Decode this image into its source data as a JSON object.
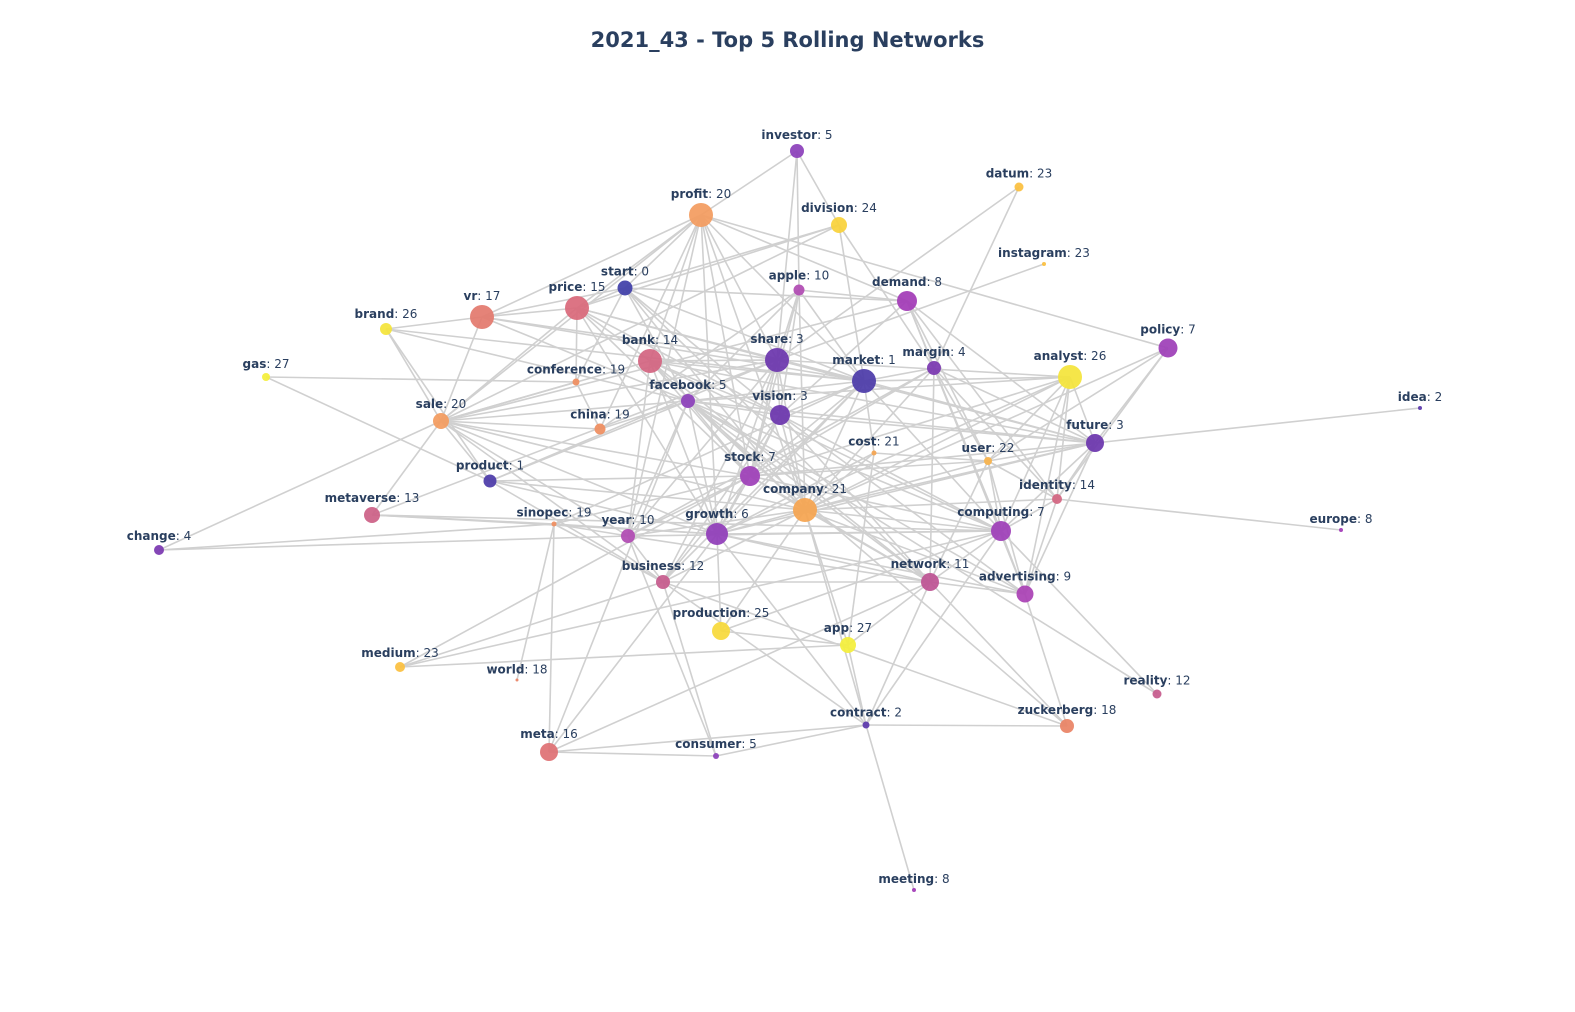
{
  "title": "2021_43 - Top 5 Rolling Networks",
  "nodes": [
    {
      "id": "investor",
      "count": "5",
      "color": "#8b3fba"
    },
    {
      "id": "datum",
      "count": "23",
      "color": "#fbbf3e"
    },
    {
      "id": "profit",
      "count": "20",
      "color": "#f39b5e"
    },
    {
      "id": "division",
      "count": "24",
      "color": "#f9d13a"
    },
    {
      "id": "instagram",
      "count": "23",
      "color": "#fbbf3e"
    },
    {
      "id": "start",
      "count": "0",
      "color": "#3f3ea8"
    },
    {
      "id": "apple",
      "count": "10",
      "color": "#b04ab2"
    },
    {
      "id": "demand",
      "count": "8",
      "color": "#a23ab6"
    },
    {
      "id": "vr",
      "count": "17",
      "color": "#e3786c"
    },
    {
      "id": "price",
      "count": "15",
      "color": "#d9687a"
    },
    {
      "id": "brand",
      "count": "26",
      "color": "#f4e43a"
    },
    {
      "id": "policy",
      "count": "7",
      "color": "#9d3eb7"
    },
    {
      "id": "share",
      "count": "3",
      "color": "#6a34ad"
    },
    {
      "id": "bank",
      "count": "14",
      "color": "#d26480"
    },
    {
      "id": "market",
      "count": "1",
      "color": "#4b3aa8"
    },
    {
      "id": "margin",
      "count": "4",
      "color": "#7a36b0"
    },
    {
      "id": "analyst",
      "count": "26",
      "color": "#f4e43a"
    },
    {
      "id": "gas",
      "count": "27",
      "color": "#f4ef3a"
    },
    {
      "id": "conference",
      "count": "19",
      "color": "#ef8d5e"
    },
    {
      "id": "facebook",
      "count": "5",
      "color": "#8b3fba"
    },
    {
      "id": "idea",
      "count": "2",
      "color": "#5a36ab"
    },
    {
      "id": "vision",
      "count": "3",
      "color": "#6a34ad"
    },
    {
      "id": "sale",
      "count": "20",
      "color": "#f39b5e"
    },
    {
      "id": "china",
      "count": "19",
      "color": "#ef8d5e"
    },
    {
      "id": "future",
      "count": "3",
      "color": "#6a34ad"
    },
    {
      "id": "cost",
      "count": "21",
      "color": "#f5a44f"
    },
    {
      "id": "user",
      "count": "22",
      "color": "#f7b24a"
    },
    {
      "id": "product",
      "count": "1",
      "color": "#4b3aa8"
    },
    {
      "id": "stock",
      "count": "7",
      "color": "#9d3eb7"
    },
    {
      "id": "identity",
      "count": "14",
      "color": "#d26480"
    },
    {
      "id": "metaverse",
      "count": "13",
      "color": "#cc5f86"
    },
    {
      "id": "company",
      "count": "21",
      "color": "#f5a44f"
    },
    {
      "id": "europe",
      "count": "8",
      "color": "#a23ab6"
    },
    {
      "id": "sinopec",
      "count": "19",
      "color": "#ef8d5e"
    },
    {
      "id": "year",
      "count": "10",
      "color": "#b04ab2"
    },
    {
      "id": "growth",
      "count": "6",
      "color": "#8f3cb8"
    },
    {
      "id": "computing",
      "count": "7",
      "color": "#9d3eb7"
    },
    {
      "id": "change",
      "count": "4",
      "color": "#7a36b0"
    },
    {
      "id": "business",
      "count": "12",
      "color": "#c55a8c"
    },
    {
      "id": "network",
      "count": "11",
      "color": "#bd5292"
    },
    {
      "id": "advertising",
      "count": "9",
      "color": "#a940b4"
    },
    {
      "id": "production",
      "count": "25",
      "color": "#f7d93a"
    },
    {
      "id": "app",
      "count": "27",
      "color": "#f4ef3a"
    },
    {
      "id": "medium",
      "count": "23",
      "color": "#fbbf3e"
    },
    {
      "id": "world",
      "count": "18",
      "color": "#e98264"
    },
    {
      "id": "reality",
      "count": "12",
      "color": "#c55a8c"
    },
    {
      "id": "contract",
      "count": "2",
      "color": "#5a36ab"
    },
    {
      "id": "zuckerberg",
      "count": "18",
      "color": "#e98264"
    },
    {
      "id": "meta",
      "count": "16",
      "color": "#de7073"
    },
    {
      "id": "consumer",
      "count": "5",
      "color": "#8b3fba"
    },
    {
      "id": "meeting",
      "count": "8",
      "color": "#a23ab6"
    }
  ],
  "edges": [
    [
      "investor",
      "profit"
    ],
    [
      "investor",
      "apple"
    ],
    [
      "investor",
      "division"
    ],
    [
      "investor",
      "share"
    ],
    [
      "profit",
      "start"
    ],
    [
      "profit",
      "price"
    ],
    [
      "profit",
      "vr"
    ],
    [
      "profit",
      "bank"
    ],
    [
      "profit",
      "demand"
    ],
    [
      "profit",
      "share"
    ],
    [
      "profit",
      "sale"
    ],
    [
      "profit",
      "china"
    ],
    [
      "profit",
      "year"
    ],
    [
      "profit",
      "growth"
    ],
    [
      "profit",
      "stock"
    ],
    [
      "profit",
      "company"
    ],
    [
      "profit",
      "market"
    ],
    [
      "profit",
      "policy"
    ],
    [
      "datum",
      "share"
    ],
    [
      "datum",
      "margin"
    ],
    [
      "division",
      "start"
    ],
    [
      "division",
      "price"
    ],
    [
      "division",
      "market"
    ],
    [
      "division",
      "margin"
    ],
    [
      "division",
      "sale"
    ],
    [
      "instagram",
      "share"
    ],
    [
      "start",
      "vr"
    ],
    [
      "start",
      "price"
    ],
    [
      "start",
      "market"
    ],
    [
      "start",
      "demand"
    ],
    [
      "start",
      "vision"
    ],
    [
      "start",
      "conference"
    ],
    [
      "start",
      "facebook"
    ],
    [
      "start",
      "company"
    ],
    [
      "start",
      "network"
    ],
    [
      "apple",
      "market"
    ],
    [
      "apple",
      "share"
    ],
    [
      "apple",
      "vision"
    ],
    [
      "apple",
      "demand"
    ],
    [
      "apple",
      "facebook"
    ],
    [
      "apple",
      "china"
    ],
    [
      "apple",
      "company"
    ],
    [
      "apple",
      "stock"
    ],
    [
      "demand",
      "margin"
    ],
    [
      "demand",
      "user"
    ],
    [
      "demand",
      "future"
    ],
    [
      "demand",
      "sale"
    ],
    [
      "demand",
      "vision"
    ],
    [
      "demand",
      "identity"
    ],
    [
      "demand",
      "computing"
    ],
    [
      "demand",
      "advertising"
    ],
    [
      "vr",
      "brand"
    ],
    [
      "vr",
      "price"
    ],
    [
      "vr",
      "share"
    ],
    [
      "vr",
      "market"
    ],
    [
      "vr",
      "facebook"
    ],
    [
      "vr",
      "sale"
    ],
    [
      "price",
      "bank"
    ],
    [
      "price",
      "conference"
    ],
    [
      "price",
      "market"
    ],
    [
      "price",
      "vision"
    ],
    [
      "price",
      "share"
    ],
    [
      "price",
      "stock"
    ],
    [
      "price",
      "sale"
    ],
    [
      "price",
      "growth"
    ],
    [
      "brand",
      "sale"
    ],
    [
      "brand",
      "product"
    ],
    [
      "brand",
      "facebook"
    ],
    [
      "brand",
      "market"
    ],
    [
      "gas",
      "conference"
    ],
    [
      "gas",
      "product"
    ],
    [
      "bank",
      "share"
    ],
    [
      "bank",
      "market"
    ],
    [
      "bank",
      "stock"
    ],
    [
      "bank",
      "vision"
    ],
    [
      "bank",
      "future"
    ],
    [
      "bank",
      "computing"
    ],
    [
      "bank",
      "network"
    ],
    [
      "bank",
      "growth"
    ],
    [
      "bank",
      "sale"
    ],
    [
      "bank",
      "year"
    ],
    [
      "bank",
      "company"
    ],
    [
      "share",
      "market"
    ],
    [
      "share",
      "stock"
    ],
    [
      "share",
      "vision"
    ],
    [
      "share",
      "future"
    ],
    [
      "share",
      "analyst"
    ],
    [
      "share",
      "growth"
    ],
    [
      "share",
      "year"
    ],
    [
      "share",
      "product"
    ],
    [
      "share",
      "company"
    ],
    [
      "share",
      "sale"
    ],
    [
      "share",
      "business"
    ],
    [
      "share",
      "metaverse"
    ],
    [
      "market",
      "margin"
    ],
    [
      "market",
      "analyst"
    ],
    [
      "market",
      "future"
    ],
    [
      "market",
      "stock"
    ],
    [
      "market",
      "company"
    ],
    [
      "market",
      "growth"
    ],
    [
      "market",
      "business"
    ],
    [
      "market",
      "facebook"
    ],
    [
      "market",
      "cost"
    ],
    [
      "market",
      "computing"
    ],
    [
      "market",
      "vision"
    ],
    [
      "market",
      "sinopec"
    ],
    [
      "margin",
      "user"
    ],
    [
      "margin",
      "future"
    ],
    [
      "margin",
      "computing"
    ],
    [
      "margin",
      "identity"
    ],
    [
      "margin",
      "company"
    ],
    [
      "margin",
      "stock"
    ],
    [
      "margin",
      "network"
    ],
    [
      "margin",
      "year"
    ],
    [
      "analyst",
      "future"
    ],
    [
      "analyst",
      "company"
    ],
    [
      "analyst",
      "computing"
    ],
    [
      "analyst",
      "identity"
    ],
    [
      "analyst",
      "user"
    ],
    [
      "analyst",
      "growth"
    ],
    [
      "analyst",
      "facebook"
    ],
    [
      "analyst",
      "advertising"
    ],
    [
      "analyst",
      "stock"
    ],
    [
      "policy",
      "future"
    ],
    [
      "policy",
      "identity"
    ],
    [
      "policy",
      "company"
    ],
    [
      "policy",
      "user"
    ],
    [
      "conference",
      "china"
    ],
    [
      "conference",
      "sale"
    ],
    [
      "facebook",
      "vision"
    ],
    [
      "facebook",
      "sale"
    ],
    [
      "facebook",
      "china"
    ],
    [
      "facebook",
      "product"
    ],
    [
      "facebook",
      "company"
    ],
    [
      "facebook",
      "future"
    ],
    [
      "facebook",
      "stock"
    ],
    [
      "facebook",
      "year"
    ],
    [
      "facebook",
      "growth"
    ],
    [
      "facebook",
      "computing"
    ],
    [
      "facebook",
      "network"
    ],
    [
      "facebook",
      "advertising"
    ],
    [
      "facebook",
      "meta"
    ],
    [
      "facebook",
      "reality"
    ],
    [
      "facebook",
      "zuckerberg"
    ],
    [
      "vision",
      "stock"
    ],
    [
      "vision",
      "growth"
    ],
    [
      "vision",
      "company"
    ],
    [
      "vision",
      "future"
    ],
    [
      "vision",
      "computing"
    ],
    [
      "vision",
      "network"
    ],
    [
      "vision",
      "advertising"
    ],
    [
      "vision",
      "business"
    ],
    [
      "sale",
      "product"
    ],
    [
      "sale",
      "stock"
    ],
    [
      "sale",
      "company"
    ],
    [
      "sale",
      "growth"
    ],
    [
      "sale",
      "year"
    ],
    [
      "sale",
      "business"
    ],
    [
      "sale",
      "china"
    ],
    [
      "sale",
      "metaverse"
    ],
    [
      "sale",
      "change"
    ],
    [
      "future",
      "idea"
    ],
    [
      "future",
      "user"
    ],
    [
      "future",
      "company"
    ],
    [
      "future",
      "computing"
    ],
    [
      "future",
      "growth"
    ],
    [
      "future",
      "advertising"
    ],
    [
      "future",
      "identity"
    ],
    [
      "future",
      "stock"
    ],
    [
      "cost",
      "company"
    ],
    [
      "cost",
      "user"
    ],
    [
      "cost",
      "app"
    ],
    [
      "cost",
      "growth"
    ],
    [
      "user",
      "identity"
    ],
    [
      "user",
      "computing"
    ],
    [
      "user",
      "advertising"
    ],
    [
      "user",
      "company"
    ],
    [
      "user",
      "network"
    ],
    [
      "user",
      "stock"
    ],
    [
      "product",
      "stock"
    ],
    [
      "product",
      "growth"
    ],
    [
      "product",
      "company"
    ],
    [
      "product",
      "business"
    ],
    [
      "stock",
      "growth"
    ],
    [
      "stock",
      "company"
    ],
    [
      "stock",
      "year"
    ],
    [
      "stock",
      "computing"
    ],
    [
      "stock",
      "network"
    ],
    [
      "stock",
      "business"
    ],
    [
      "stock",
      "sinopec"
    ],
    [
      "stock",
      "medium"
    ],
    [
      "identity",
      "europe"
    ],
    [
      "identity",
      "computing"
    ],
    [
      "identity",
      "company"
    ],
    [
      "identity",
      "advertising"
    ],
    [
      "metaverse",
      "sinopec"
    ],
    [
      "metaverse",
      "growth"
    ],
    [
      "metaverse",
      "computing"
    ],
    [
      "company",
      "growth"
    ],
    [
      "company",
      "computing"
    ],
    [
      "company",
      "network"
    ],
    [
      "company",
      "advertising"
    ],
    [
      "company",
      "year"
    ],
    [
      "company",
      "production"
    ],
    [
      "company",
      "app"
    ],
    [
      "company",
      "contract"
    ],
    [
      "company",
      "business"
    ],
    [
      "sinopec",
      "change"
    ],
    [
      "sinopec",
      "meta"
    ],
    [
      "sinopec",
      "world"
    ],
    [
      "sinopec",
      "growth"
    ],
    [
      "sinopec",
      "year"
    ],
    [
      "sinopec",
      "business"
    ],
    [
      "year",
      "computing"
    ],
    [
      "year",
      "change"
    ],
    [
      "year",
      "business"
    ],
    [
      "year",
      "network"
    ],
    [
      "year",
      "consumer"
    ],
    [
      "growth",
      "network"
    ],
    [
      "growth",
      "advertising"
    ],
    [
      "growth",
      "contract"
    ],
    [
      "growth",
      "computing"
    ],
    [
      "growth",
      "meta"
    ],
    [
      "growth",
      "production"
    ],
    [
      "computing",
      "network"
    ],
    [
      "computing",
      "advertising"
    ],
    [
      "computing",
      "contract"
    ],
    [
      "computing",
      "reality"
    ],
    [
      "computing",
      "production"
    ],
    [
      "computing",
      "medium"
    ],
    [
      "business",
      "network"
    ],
    [
      "business",
      "medium"
    ],
    [
      "business",
      "consumer"
    ],
    [
      "business",
      "contract"
    ],
    [
      "business",
      "zuckerberg"
    ],
    [
      "network",
      "advertising"
    ],
    [
      "network",
      "app"
    ],
    [
      "network",
      "contract"
    ],
    [
      "network",
      "zuckerberg"
    ],
    [
      "network",
      "meta"
    ],
    [
      "advertising",
      "zuckerberg"
    ],
    [
      "production",
      "app"
    ],
    [
      "app",
      "contract"
    ],
    [
      "app",
      "medium"
    ],
    [
      "contract",
      "consumer"
    ],
    [
      "contract",
      "zuckerberg"
    ],
    [
      "contract",
      "meeting"
    ],
    [
      "contract",
      "meta"
    ],
    [
      "meta",
      "consumer"
    ]
  ]
}
